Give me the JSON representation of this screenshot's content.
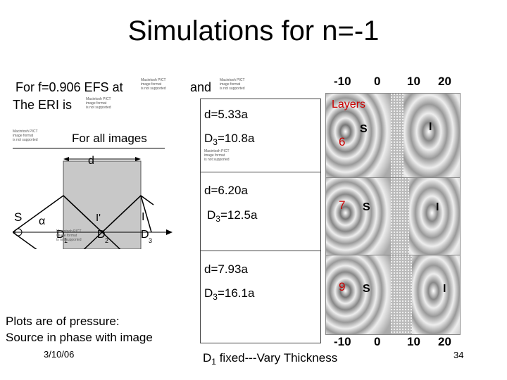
{
  "slide": {
    "title": "Simulations for n=-1",
    "date": "3/10/06",
    "page_number": "34"
  },
  "left": {
    "line1": "For f=0.906 EFS at",
    "and_word": "and",
    "line2": "The ERI is",
    "for_all": "For all images",
    "caption_line1": "Plots are of pressure:",
    "caption_line2": "Source in phase with image",
    "diagram": {
      "d_label": "d",
      "S": "S",
      "O": "O",
      "alpha": "α",
      "I_prime": "I'",
      "I": "I",
      "D": "D",
      "sub1": "1",
      "sub2": "2",
      "sub3": "3"
    }
  },
  "pict_placeholder": "Macintosh PICT\nimage format\nis not supported",
  "middle": {
    "row1_d": "d=5.33a",
    "row1_D3_base": "D",
    "row1_D3_sub": "3",
    "row1_D3_val": "=10.8a",
    "row2_d": "d=6.20a",
    "row2_D3_base": "D",
    "row2_D3_sub": "3",
    "row2_D3_val": "=12.5a",
    "row3_d": "d=7.93a",
    "row3_D3_base": "D",
    "row3_D3_sub": "3",
    "row3_D3_val": "=16.1a",
    "footer_base": "D",
    "footer_sub": "1",
    "footer_rest": " fixed---Vary Thickness"
  },
  "right": {
    "layers_label": "Layers",
    "layer1": "6",
    "layer2": "7",
    "layer3": "9",
    "axis_ticks": [
      "-10",
      "0",
      "10",
      "20"
    ],
    "panel_S": "S",
    "panel_I": "I"
  }
}
